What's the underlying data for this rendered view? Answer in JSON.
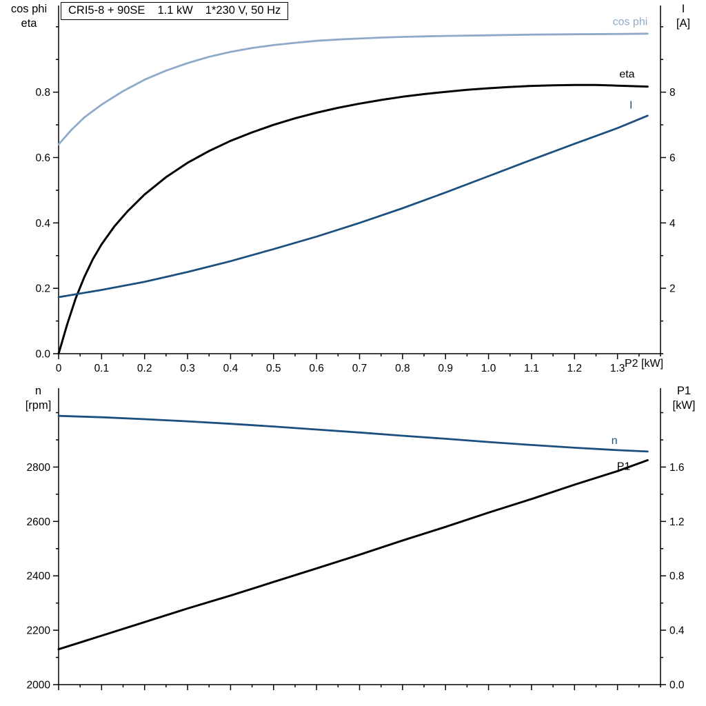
{
  "header": {
    "model": "CRI5-8 + 90SE",
    "power": "1.1 kW",
    "supply": "1*230 V, 50 Hz"
  },
  "colors": {
    "cos_phi": "#8faac8",
    "eta": "#000000",
    "current": "#1b4f7d",
    "speed": "#1b4f7d",
    "p1": "#000000",
    "axis": "#000000"
  },
  "chart_data": [
    {
      "type": "line",
      "panel": "top",
      "x_axis": {
        "label": "P2 [kW]",
        "range": [
          0,
          1.4
        ],
        "ticks": [
          0,
          0.1,
          0.2,
          0.3,
          0.4,
          0.5,
          0.6,
          0.7,
          0.8,
          0.9,
          1.0,
          1.1,
          1.2,
          1.3
        ],
        "tick_labels": [
          "0",
          "0.1",
          "0.2",
          "0.3",
          "0.4",
          "0.5",
          "0.6",
          "0.7",
          "0.8",
          "0.9",
          "1.0",
          "1.1",
          "1.2",
          "1.3"
        ],
        "minor_step": 0.05
      },
      "y_left": {
        "label_lines": [
          "cos phi",
          "eta"
        ],
        "range": [
          0,
          1.065
        ],
        "ticks": [
          0,
          0.2,
          0.4,
          0.6,
          0.8
        ],
        "tick_labels": [
          "0.0",
          "0.2",
          "0.4",
          "0.6",
          "0.8"
        ],
        "minor_step": 0.1
      },
      "y_right": {
        "label_lines": [
          "I",
          "[A]"
        ],
        "range": [
          0,
          10.65
        ],
        "ticks": [
          2,
          4,
          6,
          8
        ],
        "tick_labels": [
          "2",
          "4",
          "6",
          "8"
        ],
        "minor_step": 1
      },
      "series": [
        {
          "name": "cos phi",
          "axis": "left",
          "color": "#8faac8",
          "width": 2.8,
          "points": [
            [
              0,
              0.64
            ],
            [
              0.03,
              0.685
            ],
            [
              0.06,
              0.723
            ],
            [
              0.1,
              0.762
            ],
            [
              0.15,
              0.803
            ],
            [
              0.2,
              0.838
            ],
            [
              0.25,
              0.866
            ],
            [
              0.3,
              0.889
            ],
            [
              0.35,
              0.908
            ],
            [
              0.4,
              0.923
            ],
            [
              0.45,
              0.935
            ],
            [
              0.5,
              0.944
            ],
            [
              0.55,
              0.951
            ],
            [
              0.6,
              0.957
            ],
            [
              0.65,
              0.961
            ],
            [
              0.7,
              0.964
            ],
            [
              0.75,
              0.967
            ],
            [
              0.8,
              0.969
            ],
            [
              0.9,
              0.972
            ],
            [
              1.0,
              0.974
            ],
            [
              1.1,
              0.976
            ],
            [
              1.2,
              0.977
            ],
            [
              1.3,
              0.978
            ],
            [
              1.37,
              0.979
            ]
          ]
        },
        {
          "name": "eta",
          "axis": "left",
          "color": "#000000",
          "width": 3,
          "points": [
            [
              0,
              0.0
            ],
            [
              0.02,
              0.09
            ],
            [
              0.04,
              0.17
            ],
            [
              0.06,
              0.235
            ],
            [
              0.08,
              0.29
            ],
            [
              0.1,
              0.335
            ],
            [
              0.13,
              0.39
            ],
            [
              0.16,
              0.435
            ],
            [
              0.2,
              0.487
            ],
            [
              0.25,
              0.54
            ],
            [
              0.3,
              0.584
            ],
            [
              0.35,
              0.62
            ],
            [
              0.4,
              0.651
            ],
            [
              0.45,
              0.677
            ],
            [
              0.5,
              0.7
            ],
            [
              0.55,
              0.72
            ],
            [
              0.6,
              0.737
            ],
            [
              0.65,
              0.752
            ],
            [
              0.7,
              0.765
            ],
            [
              0.75,
              0.776
            ],
            [
              0.8,
              0.786
            ],
            [
              0.85,
              0.794
            ],
            [
              0.9,
              0.801
            ],
            [
              0.95,
              0.807
            ],
            [
              1.0,
              0.812
            ],
            [
              1.05,
              0.816
            ],
            [
              1.1,
              0.819
            ],
            [
              1.15,
              0.821
            ],
            [
              1.2,
              0.822
            ],
            [
              1.25,
              0.822
            ],
            [
              1.3,
              0.82
            ],
            [
              1.37,
              0.817
            ]
          ]
        },
        {
          "name": "I",
          "axis": "right",
          "color": "#1b4f7d",
          "width": 2.8,
          "points": [
            [
              0,
              1.73
            ],
            [
              0.1,
              1.95
            ],
            [
              0.2,
              2.2
            ],
            [
              0.3,
              2.5
            ],
            [
              0.4,
              2.83
            ],
            [
              0.5,
              3.2
            ],
            [
              0.6,
              3.58
            ],
            [
              0.7,
              4.0
            ],
            [
              0.8,
              4.45
            ],
            [
              0.9,
              4.93
            ],
            [
              1.0,
              5.43
            ],
            [
              1.1,
              5.93
            ],
            [
              1.2,
              6.42
            ],
            [
              1.3,
              6.9
            ],
            [
              1.37,
              7.28
            ]
          ]
        }
      ],
      "annotations": [
        {
          "text": "cos phi",
          "x": 1.37,
          "y": 1.005,
          "axis": "left",
          "anchor": "end",
          "color": "#8faac8"
        },
        {
          "text": "eta",
          "x": 1.34,
          "y": 0.845,
          "axis": "left",
          "anchor": "end",
          "color": "#000000"
        },
        {
          "text": "I",
          "x": 1.335,
          "y": 7.5,
          "axis": "right",
          "anchor": "end",
          "color": "#1b4f7d"
        }
      ]
    },
    {
      "type": "line",
      "panel": "bottom",
      "x_axis": {
        "label": "",
        "range": [
          0,
          1.4
        ],
        "ticks": [
          0,
          0.1,
          0.2,
          0.3,
          0.4,
          0.5,
          0.6,
          0.7,
          0.8,
          0.9,
          1.0,
          1.1,
          1.2,
          1.3
        ],
        "tick_labels": [],
        "minor_step": 0.05
      },
      "y_left": {
        "label_lines": [
          "n",
          "[rpm]"
        ],
        "range": [
          2000,
          3090
        ],
        "ticks": [
          2000,
          2200,
          2400,
          2600,
          2800
        ],
        "tick_labels": [
          "2000",
          "2200",
          "2400",
          "2600",
          "2800"
        ],
        "minor_step": 100
      },
      "y_right": {
        "label_lines": [
          "P1",
          "[kW]"
        ],
        "range": [
          0,
          2.18
        ],
        "ticks": [
          0,
          0.4,
          0.8,
          1.2,
          1.6
        ],
        "tick_labels": [
          "0.0",
          "0.4",
          "0.8",
          "1.2",
          "1.6"
        ],
        "minor_step": 0.2
      },
      "series": [
        {
          "name": "n",
          "axis": "left",
          "color": "#1b4f7d",
          "width": 2.8,
          "points": [
            [
              0,
              2988
            ],
            [
              0.1,
              2983
            ],
            [
              0.2,
              2976
            ],
            [
              0.3,
              2968
            ],
            [
              0.4,
              2959
            ],
            [
              0.5,
              2949
            ],
            [
              0.6,
              2938
            ],
            [
              0.7,
              2927
            ],
            [
              0.8,
              2915
            ],
            [
              0.9,
              2904
            ],
            [
              1.0,
              2892
            ],
            [
              1.1,
              2881
            ],
            [
              1.2,
              2871
            ],
            [
              1.3,
              2862
            ],
            [
              1.37,
              2857
            ]
          ]
        },
        {
          "name": "P1",
          "axis": "right",
          "color": "#000000",
          "width": 3,
          "points": [
            [
              0,
              0.26
            ],
            [
              0.1,
              0.36
            ],
            [
              0.2,
              0.46
            ],
            [
              0.3,
              0.56
            ],
            [
              0.4,
              0.655
            ],
            [
              0.5,
              0.755
            ],
            [
              0.6,
              0.855
            ],
            [
              0.7,
              0.955
            ],
            [
              0.8,
              1.06
            ],
            [
              0.9,
              1.16
            ],
            [
              1.0,
              1.265
            ],
            [
              1.1,
              1.365
            ],
            [
              1.2,
              1.47
            ],
            [
              1.3,
              1.57
            ],
            [
              1.37,
              1.65
            ]
          ]
        }
      ],
      "annotations": [
        {
          "text": "n",
          "x": 1.3,
          "y": 2885,
          "axis": "left",
          "anchor": "end",
          "color": "#1b4f7d"
        },
        {
          "text": "P1",
          "x": 1.33,
          "y": 2790,
          "axis": "left",
          "anchor": "end",
          "color": "#000000"
        }
      ]
    }
  ]
}
